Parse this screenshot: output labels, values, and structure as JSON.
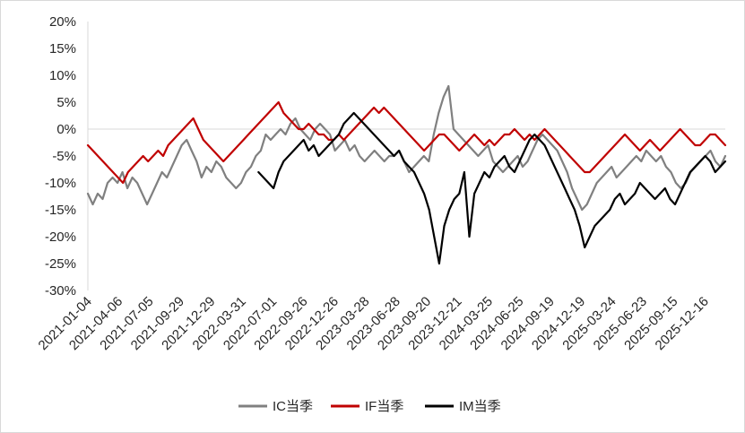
{
  "chart_data": {
    "type": "line",
    "title": "",
    "xlabel": "",
    "ylabel": "",
    "ylim": [
      -30,
      20
    ],
    "y_ticks": [
      "20%",
      "15%",
      "10%",
      "5%",
      "0%",
      "-5%",
      "-10%",
      "-15%",
      "-20%",
      "-25%",
      "-30%"
    ],
    "x_ticks": [
      "2021-01-04",
      "2021-04-06",
      "2021-07-05",
      "2021-09-29",
      "2021-12-29",
      "2022-03-31",
      "2022-07-01",
      "2022-09-26",
      "2022-12-26",
      "2023-03-28",
      "2023-06-28",
      "2023-09-20",
      "2023-12-21",
      "2024-03-25",
      "2024-06-25",
      "2024-09-19",
      "2024-12-19",
      "2025-03-24",
      "2025-06-23",
      "2025-09-15",
      "2025-12-16"
    ],
    "grid": false,
    "legend": "bottom",
    "series": [
      {
        "name": "IC当季",
        "color": "#808080",
        "values": [
          -12,
          -14,
          -12,
          -13,
          -10,
          -9,
          -10,
          -8,
          -11,
          -9,
          -10,
          -12,
          -14,
          -12,
          -10,
          -8,
          -9,
          -7,
          -5,
          -3,
          -2,
          -4,
          -6,
          -9,
          -7,
          -8,
          -6,
          -7,
          -9,
          -10,
          -11,
          -10,
          -8,
          -7,
          -5,
          -4,
          -1,
          -2,
          -1,
          0,
          -1,
          1,
          2,
          0,
          -1,
          -2,
          0,
          1,
          0,
          -1,
          -4,
          -3,
          -2,
          -4,
          -3,
          -5,
          -6,
          -5,
          -4,
          -5,
          -6,
          -5,
          -5,
          -4,
          -6,
          -8,
          -7,
          -6,
          -5,
          -6,
          -1,
          3,
          6,
          8,
          0,
          -1,
          -2,
          -3,
          -4,
          -5,
          -4,
          -3,
          -6,
          -7,
          -8,
          -7,
          -6,
          -5,
          -7,
          -6,
          -4,
          -2,
          -1,
          -2,
          -3,
          -4,
          -6,
          -8,
          -11,
          -13,
          -15,
          -14,
          -12,
          -10,
          -9,
          -8,
          -7,
          -9,
          -8,
          -7,
          -6,
          -5,
          -6,
          -4,
          -5,
          -6,
          -5,
          -7,
          -8,
          -10,
          -11,
          -10,
          -8,
          -7,
          -6,
          -5,
          -4,
          -6,
          -7,
          -5
        ]
      },
      {
        "name": "IF当季",
        "color": "#c00000",
        "values": [
          -3,
          -4,
          -5,
          -6,
          -7,
          -8,
          -9,
          -10,
          -8,
          -7,
          -6,
          -5,
          -6,
          -5,
          -4,
          -5,
          -3,
          -2,
          -1,
          0,
          1,
          2,
          0,
          -2,
          -3,
          -4,
          -5,
          -6,
          -5,
          -4,
          -3,
          -2,
          -1,
          0,
          1,
          2,
          3,
          4,
          5,
          3,
          2,
          1,
          0,
          0,
          1,
          0,
          -1,
          -1,
          -2,
          -2,
          -1,
          -2,
          -1,
          0,
          1,
          2,
          3,
          4,
          3,
          4,
          3,
          2,
          1,
          0,
          -1,
          -2,
          -3,
          -4,
          -3,
          -2,
          -1,
          -1,
          -2,
          -3,
          -4,
          -3,
          -2,
          -1,
          -2,
          -3,
          -2,
          -3,
          -2,
          -1,
          -1,
          0,
          -1,
          -2,
          -1,
          -2,
          -1,
          0,
          -1,
          -2,
          -3,
          -4,
          -5,
          -6,
          -7,
          -8,
          -8,
          -7,
          -6,
          -5,
          -4,
          -3,
          -2,
          -1,
          -2,
          -3,
          -4,
          -3,
          -2,
          -3,
          -4,
          -3,
          -2,
          -1,
          0,
          -1,
          -2,
          -3,
          -3,
          -2,
          -1,
          -1,
          -2,
          -3
        ]
      },
      {
        "name": "IM当季",
        "color": "#000000",
        "values": [
          null,
          null,
          null,
          null,
          null,
          null,
          null,
          null,
          null,
          null,
          null,
          null,
          null,
          null,
          null,
          null,
          null,
          null,
          null,
          null,
          null,
          null,
          null,
          null,
          null,
          null,
          null,
          null,
          null,
          null,
          null,
          null,
          null,
          null,
          -8,
          -9,
          -10,
          -11,
          -8,
          -6,
          -5,
          -4,
          -3,
          -2,
          -4,
          -3,
          -5,
          -4,
          -3,
          -2,
          -1,
          1,
          2,
          3,
          2,
          1,
          0,
          -1,
          -2,
          -3,
          -4,
          -5,
          -4,
          -6,
          -7,
          -8,
          -10,
          -12,
          -15,
          -20,
          -25,
          -18,
          -15,
          -13,
          -12,
          -8,
          -20,
          -12,
          -10,
          -8,
          -9,
          -7,
          -6,
          -5,
          -7,
          -8,
          -6,
          -4,
          -2,
          -1,
          -2,
          -3,
          -5,
          -7,
          -9,
          -11,
          -13,
          -15,
          -18,
          -22,
          -20,
          -18,
          -17,
          -16,
          -15,
          -13,
          -12,
          -14,
          -13,
          -12,
          -10,
          -11,
          -12,
          -13,
          -12,
          -11,
          -13,
          -14,
          -12,
          -10,
          -8,
          -7,
          -6,
          -5,
          -6,
          -8,
          -7,
          -6
        ]
      }
    ]
  }
}
